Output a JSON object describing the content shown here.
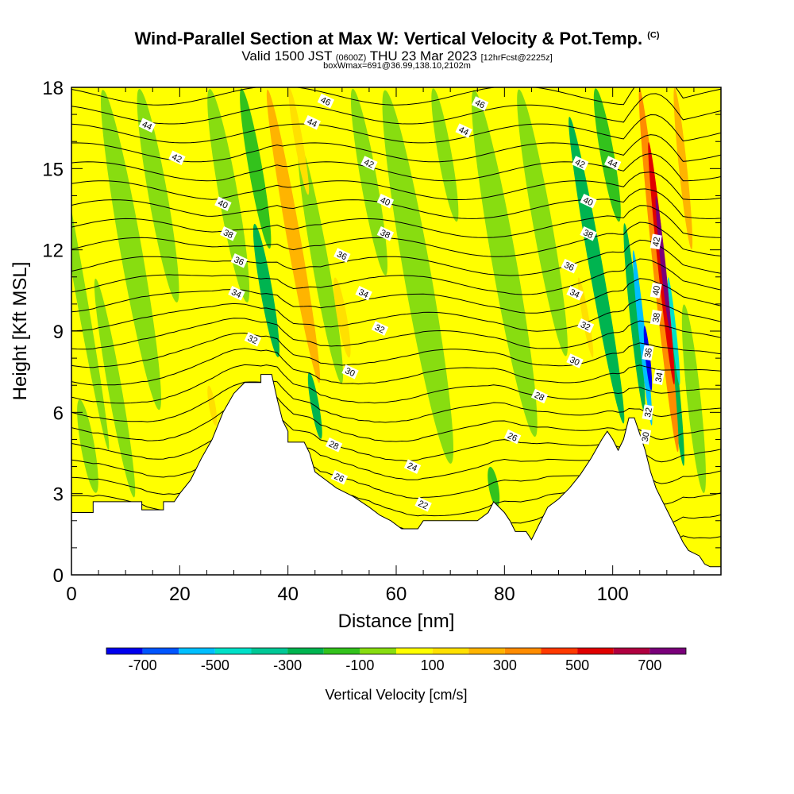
{
  "title": {
    "main": "Wind-Parallel Section at Max W: Vertical Velocity & Pot.Temp.",
    "copyright": "(C)",
    "valid_prefix": "Valid 1500 JST",
    "valid_zulu": "(0600Z)",
    "valid_date": "THU 23 Mar 2023",
    "forecast": "[12hrFcst@2225z]",
    "box": "boxWmax=691@36.99,138.10,2102m"
  },
  "chart_data": {
    "type": "heatmap",
    "title": "Wind-Parallel Section at Max W: Vertical Velocity & Pot.Temp.",
    "xlabel": "Distance [nm]",
    "ylabel": "Height [Kft MSL]",
    "xlim": [
      0,
      120
    ],
    "ylim": [
      0,
      18
    ],
    "x_ticks": [
      0,
      20,
      40,
      60,
      80,
      100
    ],
    "y_ticks": [
      0,
      3,
      6,
      9,
      12,
      15,
      18
    ],
    "colorbar": {
      "label": "Vertical Velocity [cm/s]",
      "tick_values": [
        -700,
        -500,
        -300,
        -100,
        100,
        300,
        500,
        700
      ],
      "bins": [
        {
          "from": -800,
          "to": -700,
          "color": "#0000ee"
        },
        {
          "from": -700,
          "to": -600,
          "color": "#0055ff"
        },
        {
          "from": -600,
          "to": -500,
          "color": "#00bfff"
        },
        {
          "from": -500,
          "to": -400,
          "color": "#00e0c8"
        },
        {
          "from": -400,
          "to": -300,
          "color": "#00c896"
        },
        {
          "from": -300,
          "to": -200,
          "color": "#00b450"
        },
        {
          "from": -200,
          "to": -100,
          "color": "#33c21c"
        },
        {
          "from": -100,
          "to": 0,
          "color": "#88dd10"
        },
        {
          "from": 0,
          "to": 100,
          "color": "#ffff00"
        },
        {
          "from": 100,
          "to": 200,
          "color": "#ffe000"
        },
        {
          "from": 200,
          "to": 300,
          "color": "#ffb400"
        },
        {
          "from": 300,
          "to": 400,
          "color": "#ff8c00"
        },
        {
          "from": 400,
          "to": 500,
          "color": "#ff3a00"
        },
        {
          "from": 500,
          "to": 600,
          "color": "#e00000"
        },
        {
          "from": 600,
          "to": 700,
          "color": "#b00040"
        },
        {
          "from": 700,
          "to": 800,
          "color": "#7a007a"
        }
      ]
    },
    "terrain_kft": [
      [
        0,
        2.3
      ],
      [
        4,
        2.3
      ],
      [
        4,
        2.7
      ],
      [
        13,
        2.7
      ],
      [
        13,
        2.4
      ],
      [
        17,
        2.4
      ],
      [
        17,
        2.7
      ],
      [
        19,
        2.7
      ],
      [
        20,
        3.0
      ],
      [
        22,
        3.5
      ],
      [
        24,
        4.3
      ],
      [
        26,
        5.0
      ],
      [
        28,
        6.0
      ],
      [
        30,
        6.7
      ],
      [
        32,
        7.1
      ],
      [
        35,
        7.1
      ],
      [
        35,
        7.4
      ],
      [
        37,
        7.4
      ],
      [
        38,
        6.5
      ],
      [
        39,
        5.7
      ],
      [
        40,
        5.3
      ],
      [
        40,
        4.9
      ],
      [
        43,
        4.9
      ],
      [
        44,
        4.5
      ],
      [
        45,
        3.8
      ],
      [
        47,
        3.5
      ],
      [
        49,
        3.2
      ],
      [
        52,
        2.9
      ],
      [
        55,
        2.5
      ],
      [
        57,
        2.2
      ],
      [
        59,
        2.0
      ],
      [
        61,
        1.7
      ],
      [
        64,
        1.7
      ],
      [
        65,
        2.0
      ],
      [
        72,
        2.0
      ],
      [
        75,
        2.0
      ],
      [
        77,
        2.3
      ],
      [
        78,
        2.7
      ],
      [
        80,
        2.3
      ],
      [
        81,
        2.0
      ],
      [
        82,
        1.6
      ],
      [
        84,
        1.6
      ],
      [
        85,
        1.3
      ],
      [
        86,
        1.7
      ],
      [
        87,
        2.1
      ],
      [
        88,
        2.5
      ],
      [
        90,
        2.8
      ],
      [
        92,
        3.2
      ],
      [
        94,
        3.7
      ],
      [
        96,
        4.3
      ],
      [
        98,
        5.0
      ],
      [
        99,
        5.3
      ],
      [
        100,
        5.0
      ],
      [
        101,
        4.6
      ],
      [
        102,
        5.0
      ],
      [
        103,
        5.8
      ],
      [
        104,
        5.8
      ],
      [
        105,
        5.2
      ],
      [
        106,
        4.6
      ],
      [
        107,
        3.8
      ],
      [
        108,
        3.2
      ],
      [
        109,
        2.8
      ],
      [
        110,
        2.4
      ],
      [
        111,
        2.0
      ],
      [
        112,
        1.6
      ],
      [
        113,
        1.2
      ],
      [
        114,
        0.9
      ],
      [
        116,
        0.7
      ],
      [
        117,
        0.4
      ],
      [
        118,
        0.3
      ],
      [
        120,
        0.3
      ]
    ],
    "velocity_features": [
      {
        "x": 1,
        "y_from": 4.5,
        "y_to": 18,
        "w": 2,
        "value": -80
      },
      {
        "x": 3,
        "y_from": 3,
        "y_to": 6.5,
        "w": 2.5,
        "value": -80
      },
      {
        "x": 8,
        "y_from": 2.8,
        "y_to": 11,
        "w": 2.5,
        "value": -60
      },
      {
        "x": 11,
        "y_from": 6,
        "y_to": 18,
        "w": 4,
        "value": -60
      },
      {
        "x": 16,
        "y_from": 10,
        "y_to": 18,
        "w": 3.5,
        "value": -60
      },
      {
        "x": 26,
        "y_from": 5.5,
        "y_to": 7,
        "w": 1.2,
        "value": 150
      },
      {
        "x": 29,
        "y_from": 10,
        "y_to": 18,
        "w": 3.5,
        "value": -80
      },
      {
        "x": 30,
        "y_from": 8,
        "y_to": 13,
        "w": 1.5,
        "value": 60
      },
      {
        "x": 36,
        "y_from": 8,
        "y_to": 13,
        "w": 2.2,
        "value": -250
      },
      {
        "x": 34,
        "y_from": 12,
        "y_to": 18,
        "w": 2.5,
        "value": -120
      },
      {
        "x": 41,
        "y_from": 7,
        "y_to": 18,
        "w": 2.5,
        "value": 250
      },
      {
        "x": 42,
        "y_from": 14,
        "y_to": 18,
        "w": 1.5,
        "value": 150
      },
      {
        "x": 45,
        "y_from": 5.0,
        "y_to": 7.5,
        "w": 1.5,
        "value": -220
      },
      {
        "x": 46,
        "y_from": 7,
        "y_to": 16,
        "w": 3,
        "value": -80
      },
      {
        "x": 50,
        "y_from": 8,
        "y_to": 11,
        "w": 1.8,
        "value": 150
      },
      {
        "x": 55,
        "y_from": 11,
        "y_to": 18,
        "w": 3,
        "value": -80
      },
      {
        "x": 64,
        "y_from": 4,
        "y_to": 18,
        "w": 5,
        "value": -80
      },
      {
        "x": 69,
        "y_from": 13,
        "y_to": 18,
        "w": 2.5,
        "value": -60
      },
      {
        "x": 78,
        "y_from": 2.5,
        "y_to": 4,
        "w": 1.8,
        "value": -150
      },
      {
        "x": 80,
        "y_from": 5,
        "y_to": 18,
        "w": 4.5,
        "value": -80
      },
      {
        "x": 87,
        "y_from": 8,
        "y_to": 18,
        "w": 3.5,
        "value": -80
      },
      {
        "x": 95,
        "y_from": 8,
        "y_to": 11,
        "w": 1.2,
        "value": 150
      },
      {
        "x": 97,
        "y_from": 5.5,
        "y_to": 17,
        "w": 2.5,
        "value": -220
      },
      {
        "x": 99,
        "y_from": 13,
        "y_to": 18,
        "w": 2.5,
        "value": -120
      },
      {
        "x": 104,
        "y_from": 6,
        "y_to": 13,
        "w": 1.6,
        "value": -300
      },
      {
        "x": 105.5,
        "y_from": 5.5,
        "y_to": 12,
        "w": 1.2,
        "value": -550
      },
      {
        "x": 106.5,
        "y_from": 6.8,
        "y_to": 9.2,
        "w": 0.9,
        "value": -750
      },
      {
        "x": 108.5,
        "y_from": 4.5,
        "y_to": 18,
        "w": 2.0,
        "value": 350
      },
      {
        "x": 109,
        "y_from": 7,
        "y_to": 16,
        "w": 1.4,
        "value": 550
      },
      {
        "x": 109.3,
        "y_from": 9,
        "y_to": 14,
        "w": 0.9,
        "value": 700
      },
      {
        "x": 111,
        "y_from": 4,
        "y_to": 12,
        "w": 1.6,
        "value": -300
      },
      {
        "x": 111.3,
        "y_from": 7,
        "y_to": 11,
        "w": 0.9,
        "value": -420
      },
      {
        "x": 113,
        "y_from": 12,
        "y_to": 18,
        "w": 1.5,
        "value": 250
      },
      {
        "x": 115,
        "y_from": 3,
        "y_to": 10,
        "w": 2.5,
        "value": -80
      }
    ],
    "theta_levels": [
      22,
      23,
      24,
      25,
      26,
      27,
      28,
      29,
      30,
      31,
      32,
      33,
      34,
      35,
      36,
      37,
      38,
      39,
      40,
      41,
      42,
      43,
      44,
      45,
      46,
      47
    ],
    "contour_labels": [
      {
        "text": "44",
        "x": 14,
        "y": 16.6
      },
      {
        "text": "42",
        "x": 19.5,
        "y": 15.4
      },
      {
        "text": "40",
        "x": 28,
        "y": 13.7
      },
      {
        "text": "38",
        "x": 29,
        "y": 12.6
      },
      {
        "text": "36",
        "x": 31,
        "y": 11.6
      },
      {
        "text": "34",
        "x": 30.5,
        "y": 10.4
      },
      {
        "text": "32",
        "x": 33.5,
        "y": 8.7
      },
      {
        "text": "46",
        "x": 47,
        "y": 17.5
      },
      {
        "text": "44",
        "x": 44.5,
        "y": 16.7
      },
      {
        "text": "42",
        "x": 55,
        "y": 15.2
      },
      {
        "text": "40",
        "x": 58,
        "y": 13.8
      },
      {
        "text": "38",
        "x": 58,
        "y": 12.6
      },
      {
        "text": "36",
        "x": 50,
        "y": 11.8
      },
      {
        "text": "34",
        "x": 54,
        "y": 10.4
      },
      {
        "text": "32",
        "x": 57,
        "y": 9.1
      },
      {
        "text": "30",
        "x": 51.5,
        "y": 7.5
      },
      {
        "text": "28",
        "x": 48.5,
        "y": 4.8
      },
      {
        "text": "26",
        "x": 49.5,
        "y": 3.6
      },
      {
        "text": "24",
        "x": 63,
        "y": 4.0
      },
      {
        "text": "22",
        "x": 65,
        "y": 2.6
      },
      {
        "text": "46",
        "x": 75.5,
        "y": 17.4
      },
      {
        "text": "44",
        "x": 72.5,
        "y": 16.4
      },
      {
        "text": "28",
        "x": 86.5,
        "y": 6.6
      },
      {
        "text": "26",
        "x": 81.5,
        "y": 5.1
      },
      {
        "text": "42",
        "x": 94,
        "y": 15.2
      },
      {
        "text": "44",
        "x": 100,
        "y": 15.2
      },
      {
        "text": "40",
        "x": 95.5,
        "y": 13.8
      },
      {
        "text": "38",
        "x": 95.5,
        "y": 12.6
      },
      {
        "text": "36",
        "x": 92,
        "y": 11.4
      },
      {
        "text": "34",
        "x": 93,
        "y": 10.4
      },
      {
        "text": "32",
        "x": 95,
        "y": 9.2
      },
      {
        "text": "30",
        "x": 93,
        "y": 7.9
      },
      {
        "text": "42",
        "x": 108,
        "y": 12.3
      },
      {
        "text": "40",
        "x": 108,
        "y": 10.5
      },
      {
        "text": "38",
        "x": 108,
        "y": 9.5
      },
      {
        "text": "36",
        "x": 106.5,
        "y": 8.2
      },
      {
        "text": "34",
        "x": 108.5,
        "y": 7.3
      },
      {
        "text": "32",
        "x": 106.5,
        "y": 6.0
      },
      {
        "text": "30",
        "x": 106,
        "y": 5.1
      }
    ]
  }
}
